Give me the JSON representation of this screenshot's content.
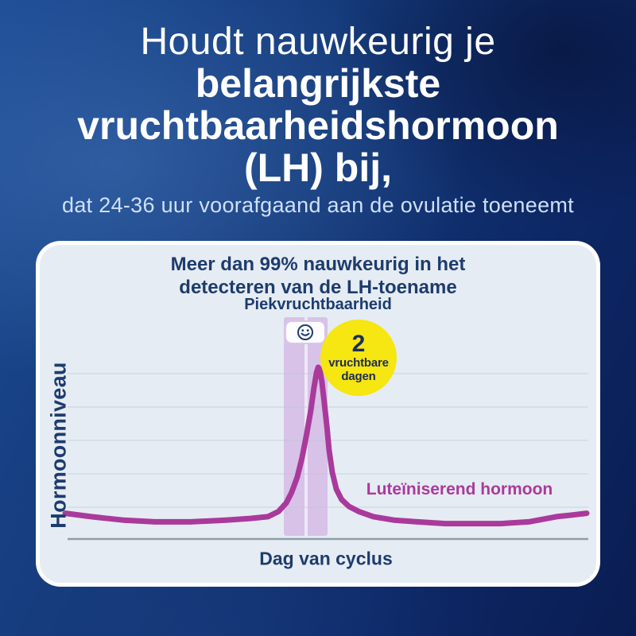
{
  "page": {
    "heading_light": "Houdt nauwkeurig je",
    "heading_bold_lines": [
      "belangrijkste",
      "vruchtbaarheidshormoon",
      "(LH) bij,"
    ],
    "subheading": "dat 24-36 uur voorafgaand aan de ovulatie toeneemt"
  },
  "card": {
    "title_line1": "Meer dan 99% nauwkeurig in het",
    "title_line2": "detecteren van de LH-toename",
    "peak_label": "Piekvruchtbaarheid",
    "fertile_badge": {
      "number": "2",
      "word1": "vruchtbare",
      "word2": "dagen"
    },
    "series_label": "Luteïniserend hormoon",
    "y_axis_label": "Hormoonniveau",
    "x_axis_label": "Dag van cyclus"
  },
  "icons": {
    "smiley": "smiley-face-icon"
  },
  "colors": {
    "background_blue": "#143a7a",
    "card_bg": "#e6ecf3",
    "navy_text": "#1d3c6e",
    "heading_white": "#ffffff",
    "subheading_blue": "#cde0f7",
    "line_magenta": "#a93a9c",
    "band_purple": "#d8c2e8",
    "badge_yellow": "#f6e611",
    "badge_text_navy": "#1c2d5a",
    "gridline": "#b9c8d2",
    "axis_line": "#8f9dab"
  },
  "chart_data": {
    "type": "line",
    "title": "Meer dan 99% nauwkeurig in het detecteren van de LH-toename",
    "xlabel": "Dag van cyclus",
    "ylabel": "Hormoonniveau",
    "x_ticks": [],
    "y_ticks": [],
    "axis_note": "no numeric tick labels shown; x = cycle position 0-1, y = relative hormone level 0-100",
    "gridlines": {
      "horizontal_count": 5,
      "vertical": false
    },
    "xlim": [
      0,
      1
    ],
    "ylim": [
      0,
      110
    ],
    "series": [
      {
        "name": "Luteïniserend hormoon",
        "color": "#a93a9c",
        "x": [
          0.0,
          0.05,
          0.111,
          0.172,
          0.241,
          0.309,
          0.355,
          0.389,
          0.409,
          0.424,
          0.434,
          0.445,
          0.454,
          0.463,
          0.471,
          0.477,
          0.482,
          0.485,
          0.488,
          0.492,
          0.497,
          0.502,
          0.506,
          0.512,
          0.52,
          0.53,
          0.544,
          0.563,
          0.591,
          0.63,
          0.675,
          0.729,
          0.782,
          0.835,
          0.889,
          0.942,
          0.972,
          1.0
        ],
        "y": [
          15,
          13,
          11,
          10,
          10,
          11,
          12,
          13,
          16,
          21,
          27,
          36,
          47,
          61,
          75,
          88,
          97,
          100,
          99,
          92,
          79,
          65,
          52,
          39,
          29,
          23,
          19,
          16,
          13,
          11,
          10,
          9,
          9,
          9,
          10,
          13,
          14,
          15
        ]
      }
    ],
    "annotations": [
      {
        "type": "band",
        "label": "Piekvruchtbaarheid",
        "x_start": 0.419,
        "x_end": 0.503,
        "days": 2
      },
      {
        "type": "badge",
        "text": "2 vruchtbare dagen"
      },
      {
        "type": "icon",
        "name": "smiley-face",
        "position": "top-of-band"
      }
    ],
    "legend_position": "right-of-peak-inline"
  }
}
